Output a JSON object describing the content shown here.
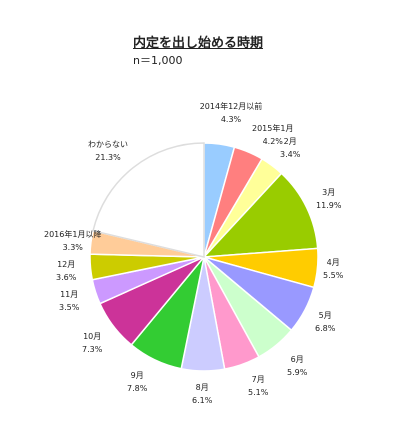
{
  "chart_data": {
    "type": "pie",
    "title": "内定を出し始める時期",
    "subtitle": "n＝1,000",
    "slices": [
      {
        "label": "2014年12月以前",
        "value": 4.3,
        "value_label": "4.3%",
        "color": "#99ccff"
      },
      {
        "label": "2015年1月",
        "value": 4.2,
        "value_label": "4.2%",
        "color": "#ff7f7f"
      },
      {
        "label": "2月",
        "value": 3.4,
        "value_label": "3.4%",
        "color": "#ffff99"
      },
      {
        "label": "3月",
        "value": 11.9,
        "value_label": "11.9%",
        "color": "#99cc00"
      },
      {
        "label": "4月",
        "value": 5.5,
        "value_label": "5.5%",
        "color": "#ffcc00"
      },
      {
        "label": "5月",
        "value": 6.8,
        "value_label": "6.8%",
        "color": "#9999ff"
      },
      {
        "label": "6月",
        "value": 5.9,
        "value_label": "5.9%",
        "color": "#ccffcc"
      },
      {
        "label": "7月",
        "value": 5.1,
        "value_label": "5.1%",
        "color": "#ff99cc"
      },
      {
        "label": "8月",
        "value": 6.1,
        "value_label": "6.1%",
        "color": "#ccccff"
      },
      {
        "label": "9月",
        "value": 7.8,
        "value_label": "7.8%",
        "color": "#33cc33"
      },
      {
        "label": "10月",
        "value": 7.3,
        "value_label": "7.3%",
        "color": "#cc3399"
      },
      {
        "label": "11月",
        "value": 3.5,
        "value_label": "3.5%",
        "color": "#cc99ff"
      },
      {
        "label": "12月",
        "value": 3.6,
        "value_label": "3.6%",
        "color": "#cccc00"
      },
      {
        "label": "2016年1月以降",
        "value": 3.3,
        "value_label": "3.3%",
        "color": "#ffcc99"
      },
      {
        "label": "わからない",
        "value": 21.3,
        "value_label": "21.3%",
        "color": "#ffffff"
      }
    ]
  }
}
